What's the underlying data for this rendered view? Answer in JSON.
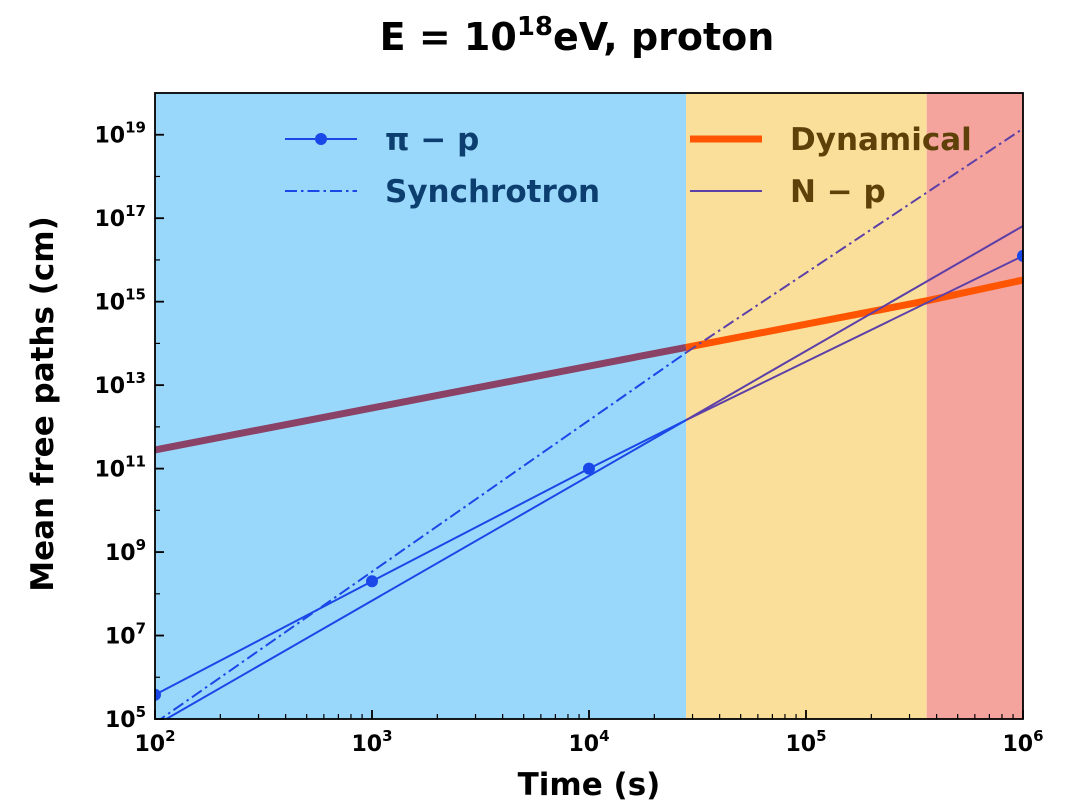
{
  "chart_data": {
    "type": "line",
    "title": {
      "base": "E  =  10",
      "sup": "18",
      "rest": "eV, proton"
    },
    "xlabel": "Time (s)",
    "ylabel": "Mean free paths (cm)",
    "xscale": "log",
    "yscale": "log",
    "xlim": [
      100,
      1000000
    ],
    "ylim": [
      100000,
      1e+20
    ],
    "grid": false,
    "legend_location": "top",
    "x_ticks": [
      {
        "base": "10",
        "exp": "2",
        "value": 100
      },
      {
        "base": "10",
        "exp": "3",
        "value": 1000
      },
      {
        "base": "10",
        "exp": "4",
        "value": 10000
      },
      {
        "base": "10",
        "exp": "5",
        "value": 100000
      },
      {
        "base": "10",
        "exp": "6",
        "value": 1000000
      }
    ],
    "y_ticks": [
      {
        "base": "10",
        "exp": "5",
        "value": 100000.0
      },
      {
        "base": "10",
        "exp": "7",
        "value": 10000000.0
      },
      {
        "base": "10",
        "exp": "9",
        "value": 1000000000.0
      },
      {
        "base": "10",
        "exp": "11",
        "value": 100000000000.0
      },
      {
        "base": "10",
        "exp": "13",
        "value": 10000000000000.0
      },
      {
        "base": "10",
        "exp": "15",
        "value": 1000000000000000.0
      },
      {
        "base": "10",
        "exp": "17",
        "value": 1e+17
      },
      {
        "base": "10",
        "exp": "19",
        "value": 1e+19
      }
    ],
    "regions": [
      {
        "x_start": 100,
        "x_end": 28000,
        "color": "#9ad8fb"
      },
      {
        "x_start": 28000,
        "x_end": 360000,
        "color": "#fadf9b"
      },
      {
        "x_start": 360000,
        "x_end": 1000000,
        "color": "#f5a39d"
      }
    ],
    "series": [
      {
        "name": "Dynamical",
        "style": "thick",
        "segments": [
          {
            "points": [
              [
                100,
                280000000000.0
              ],
              [
                28000,
                80000000000000.0
              ]
            ],
            "color": "#8a4266"
          },
          {
            "points": [
              [
                28000,
                80000000000000.0
              ],
              [
                360000,
                1050000000000000.0
              ],
              [
                1000000,
                3300000000000000.0
              ]
            ],
            "color": "#ff5500"
          }
        ]
      },
      {
        "name": "π − p",
        "style": "marker",
        "color": "#1a48e8",
        "segments": [
          {
            "points": [
              [
                100,
                380000.0
              ],
              [
                1000,
                200000000.0
              ],
              [
                10000,
                100000000000.0
              ],
              [
                28000,
                1450000000000.0
              ]
            ],
            "color": "#1a48e8"
          },
          {
            "points": [
              [
                28000,
                1450000000000.0
              ],
              [
                1000000,
                1.25e+16
              ]
            ],
            "color": "#5c40a8"
          }
        ],
        "markers": [
          [
            100,
            380000.0
          ],
          [
            1000,
            200000000.0
          ],
          [
            10000,
            100000000000.0
          ],
          [
            1000000,
            1.25e+16
          ]
        ]
      },
      {
        "name": "Synchrotron",
        "style": "dashdot",
        "segments": [
          {
            "points": [
              [
                100,
                80000.0
              ],
              [
                28000,
                60000000000000.0
              ]
            ],
            "color": "#1a48e8"
          },
          {
            "points": [
              [
                28000,
                60000000000000.0
              ],
              [
                1000000,
                1.4e+19
              ]
            ],
            "color": "#5c40a8"
          }
        ]
      },
      {
        "name": "N − p",
        "style": "thin",
        "segments": [
          {
            "points": [
              [
                100,
                70000.0
              ],
              [
                28000,
                1450000000000.0
              ]
            ],
            "color": "#1a48e8"
          },
          {
            "points": [
              [
                28000,
                1450000000000.0
              ],
              [
                1000000,
                6.5e+16
              ]
            ],
            "color": "#5c40a8"
          }
        ]
      }
    ],
    "legend": [
      {
        "label": "π − p",
        "style": "marker",
        "color": "#1a48e8",
        "text_color": "#0c3f70"
      },
      {
        "label": "Synchrotron",
        "style": "dashdot",
        "color": "#1a48e8",
        "text_color": "#0c3f70"
      },
      {
        "label": "Dynamical",
        "style": "thick",
        "color": "#ff5500",
        "text_color": "#5e4109"
      },
      {
        "label": "N − p",
        "style": "thin",
        "color": "#5c40a8",
        "text_color": "#5e4109"
      }
    ]
  }
}
